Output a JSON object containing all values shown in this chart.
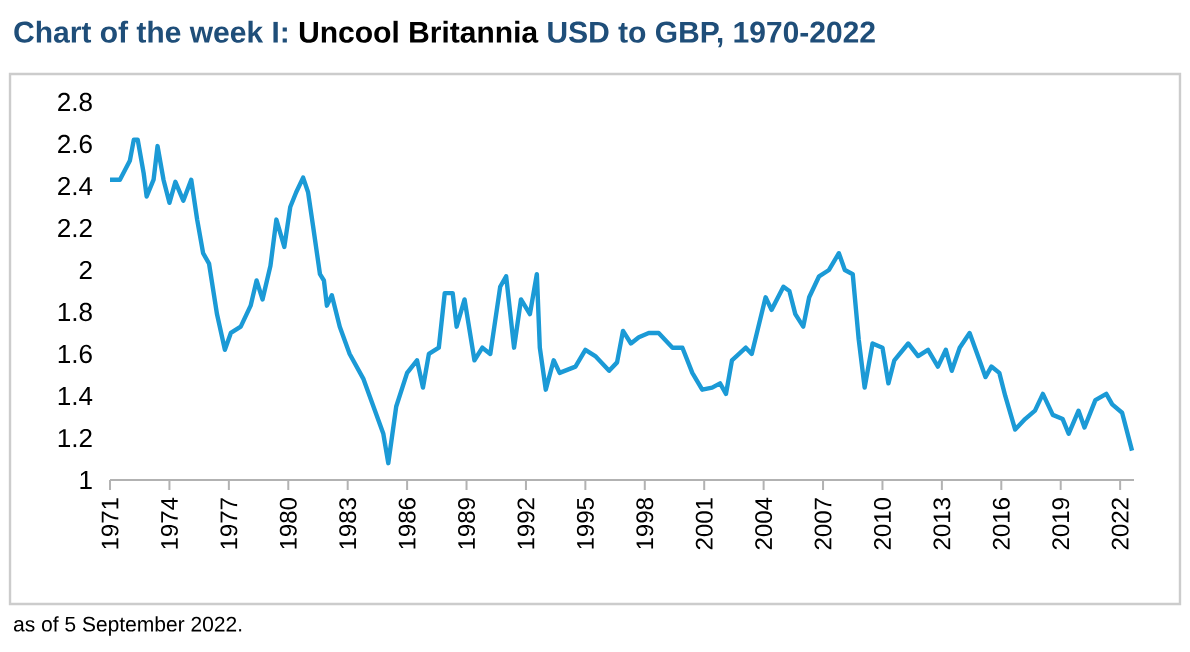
{
  "chart_data": {
    "type": "line",
    "title": "Chart of the week I: **Uncool Britannia** USD to GBP, 1970-2022",
    "annotations": [
      "as of 5 September 2022."
    ],
    "xlim": [
      1971,
      2022.7
    ],
    "xticks": [
      1971,
      1974,
      1977,
      1980,
      1983,
      1986,
      1989,
      1992,
      1995,
      1998,
      2001,
      2004,
      2007,
      2010,
      2013,
      2016,
      2019,
      2022
    ],
    "ylim": [
      1,
      2.8
    ],
    "yticks": [
      1,
      1.2,
      1.4,
      1.6,
      1.8,
      2,
      2.2,
      2.4,
      2.6,
      2.8
    ],
    "grid": false,
    "marker": "none",
    "line_style": "solid",
    "series": [
      {
        "color": "#1b9ad6",
        "x": [
          1971.0,
          1971.5,
          1972.0,
          1972.2,
          1972.4,
          1972.7,
          1972.85,
          1973.2,
          1973.4,
          1973.7,
          1974.0,
          1974.3,
          1974.7,
          1975.1,
          1975.4,
          1975.7,
          1976.0,
          1976.4,
          1976.8,
          1977.1,
          1977.6,
          1978.1,
          1978.4,
          1978.7,
          1979.1,
          1979.4,
          1979.8,
          1980.1,
          1980.4,
          1980.75,
          1981.0,
          1981.25,
          1981.6,
          1981.8,
          1981.95,
          1982.2,
          1982.6,
          1983.1,
          1983.8,
          1984.3,
          1984.8,
          1985.05,
          1985.45,
          1986.0,
          1986.5,
          1986.8,
          1987.1,
          1987.6,
          1987.9,
          1988.3,
          1988.5,
          1988.9,
          1989.4,
          1989.8,
          1990.2,
          1990.7,
          1991.0,
          1991.4,
          1991.75,
          1992.2,
          1992.55,
          1992.7,
          1993.0,
          1993.4,
          1993.7,
          1994.5,
          1995.0,
          1995.5,
          1996.2,
          1996.6,
          1996.9,
          1997.3,
          1997.7,
          1998.2,
          1998.7,
          1999.4,
          1999.9,
          2000.4,
          2000.9,
          2001.4,
          2001.8,
          2002.1,
          2002.4,
          2003.1,
          2003.4,
          2004.1,
          2004.4,
          2005.0,
          2005.3,
          2005.6,
          2006.0,
          2006.3,
          2006.8,
          2007.3,
          2007.8,
          2008.1,
          2008.5,
          2008.8,
          2009.1,
          2009.5,
          2010.0,
          2010.3,
          2010.6,
          2011.3,
          2011.8,
          2012.3,
          2012.8,
          2013.2,
          2013.5,
          2013.9,
          2014.4,
          2014.9,
          2015.2,
          2015.5,
          2015.9,
          2016.2,
          2016.7,
          2017.2,
          2017.7,
          2018.1,
          2018.6,
          2019.1,
          2019.4,
          2019.9,
          2020.2,
          2020.75,
          2021.3,
          2021.6,
          2022.1,
          2022.6
        ],
        "values": [
          2.43,
          2.43,
          2.52,
          2.62,
          2.62,
          2.46,
          2.35,
          2.43,
          2.59,
          2.43,
          2.32,
          2.42,
          2.33,
          2.43,
          2.24,
          2.08,
          2.03,
          1.79,
          1.62,
          1.7,
          1.73,
          1.83,
          1.95,
          1.86,
          2.02,
          2.24,
          2.11,
          2.3,
          2.37,
          2.44,
          2.37,
          2.21,
          1.98,
          1.95,
          1.83,
          1.88,
          1.73,
          1.6,
          1.48,
          1.35,
          1.22,
          1.08,
          1.35,
          1.51,
          1.57,
          1.44,
          1.6,
          1.63,
          1.89,
          1.89,
          1.73,
          1.86,
          1.57,
          1.63,
          1.6,
          1.92,
          1.97,
          1.63,
          1.86,
          1.79,
          1.98,
          1.63,
          1.43,
          1.57,
          1.51,
          1.54,
          1.62,
          1.59,
          1.52,
          1.56,
          1.71,
          1.65,
          1.68,
          1.7,
          1.7,
          1.63,
          1.63,
          1.51,
          1.43,
          1.44,
          1.46,
          1.41,
          1.57,
          1.63,
          1.6,
          1.87,
          1.81,
          1.92,
          1.9,
          1.79,
          1.73,
          1.87,
          1.97,
          2.0,
          2.08,
          2.0,
          1.98,
          1.67,
          1.44,
          1.65,
          1.63,
          1.46,
          1.57,
          1.65,
          1.59,
          1.62,
          1.54,
          1.62,
          1.52,
          1.63,
          1.7,
          1.57,
          1.49,
          1.54,
          1.51,
          1.4,
          1.24,
          1.29,
          1.33,
          1.41,
          1.31,
          1.29,
          1.22,
          1.33,
          1.25,
          1.38,
          1.41,
          1.36,
          1.32,
          1.14
        ]
      }
    ]
  }
}
